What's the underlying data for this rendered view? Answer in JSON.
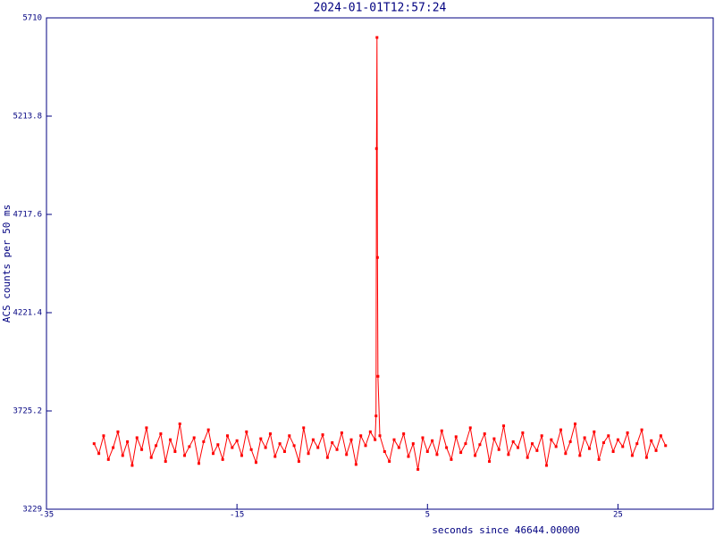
{
  "chart_data": {
    "type": "line",
    "title": "2024-01-01T12:57:24",
    "x_label": "seconds since 46644.00000",
    "y_label": "ACS counts per 50 ms",
    "xlim": [
      -35,
      35
    ],
    "xticks": [
      -35,
      -15,
      5,
      25
    ],
    "ylim": [
      3229,
      5710
    ],
    "yticks": [
      3229,
      3725.2,
      4221.4,
      4717.6,
      5213.8,
      5710
    ],
    "grid": false,
    "series": [
      {
        "color": "#ff0000",
        "x": [
          -30,
          -29.5,
          -29,
          -28.5,
          -28,
          -27.5,
          -27,
          -26.5,
          -26,
          -25.5,
          -25,
          -24.5,
          -24,
          -23.5,
          -23,
          -22.5,
          -22,
          -21.5,
          -21,
          -20.5,
          -20,
          -19.5,
          -19,
          -18.5,
          -18,
          -17.5,
          -17,
          -16.5,
          -16,
          -15.5,
          -15,
          -14.5,
          -14,
          -13.5,
          -13,
          -12.5,
          -12,
          -11.5,
          -11,
          -10.5,
          -10,
          -9.5,
          -9,
          -8.5,
          -8,
          -7.5,
          -7,
          -6.5,
          -6,
          -5.5,
          -5,
          -4.5,
          -4,
          -3.5,
          -3,
          -2.5,
          -2,
          -1.5,
          -1,
          -0.5,
          -0.4,
          -0.35,
          -0.3,
          -0.25,
          -0.2,
          0,
          0.5,
          1,
          1.5,
          2,
          2.5,
          3,
          3.5,
          4,
          4.5,
          5,
          5.5,
          6,
          6.5,
          7,
          7.5,
          8,
          8.5,
          9,
          9.5,
          10,
          10.5,
          11,
          11.5,
          12,
          12.5,
          13,
          13.5,
          14,
          14.5,
          15,
          15.5,
          16,
          16.5,
          17,
          17.5,
          18,
          18.5,
          19,
          19.5,
          20,
          20.5,
          21,
          21.5,
          22,
          22.5,
          23,
          23.5,
          24,
          24.5,
          25,
          25.5,
          26,
          26.5,
          27,
          27.5,
          28,
          28.5,
          29,
          29.5,
          30
        ],
        "values": [
          3560,
          3510,
          3600,
          3480,
          3540,
          3620,
          3500,
          3570,
          3450,
          3590,
          3530,
          3640,
          3490,
          3550,
          3610,
          3470,
          3580,
          3520,
          3660,
          3500,
          3545,
          3590,
          3460,
          3570,
          3630,
          3510,
          3555,
          3480,
          3600,
          3540,
          3575,
          3500,
          3620,
          3530,
          3465,
          3585,
          3540,
          3610,
          3495,
          3560,
          3520,
          3600,
          3550,
          3470,
          3640,
          3510,
          3580,
          3540,
          3605,
          3490,
          3565,
          3530,
          3615,
          3505,
          3580,
          3455,
          3600,
          3550,
          3620,
          3580,
          3700,
          5050,
          5611,
          4500,
          3900,
          3600,
          3520,
          3470,
          3580,
          3540,
          3610,
          3495,
          3560,
          3430,
          3590,
          3520,
          3575,
          3505,
          3625,
          3540,
          3480,
          3595,
          3515,
          3560,
          3640,
          3500,
          3555,
          3610,
          3470,
          3585,
          3530,
          3650,
          3505,
          3570,
          3540,
          3615,
          3490,
          3560,
          3525,
          3600,
          3450,
          3580,
          3545,
          3630,
          3510,
          3570,
          3660,
          3500,
          3590,
          3535,
          3620,
          3480,
          3565,
          3600,
          3520,
          3580,
          3545,
          3615,
          3500,
          3560,
          3630,
          3490,
          3575,
          3525,
          3600,
          3550
        ]
      }
    ]
  }
}
